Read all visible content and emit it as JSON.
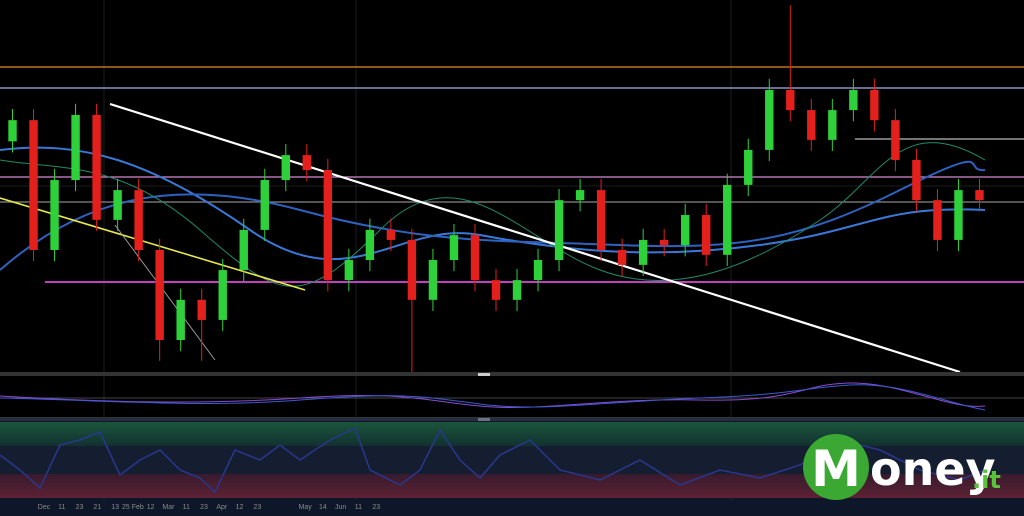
{
  "chart_data": {
    "type": "candlestick",
    "ylim": [
      0,
      100
    ],
    "up_color": "#2fd13a",
    "down_color": "#e3201c",
    "open": [
      62,
      67.7,
      32.8,
      51.6,
      69.1,
      40.9,
      48.9,
      32.8,
      8.6,
      19.4,
      14.0,
      27.4,
      38.2,
      51.6,
      58.3,
      54.3,
      24.7,
      30.1,
      38.2,
      35.5,
      19.4,
      30.1,
      36.8,
      24.7,
      19.4,
      24.7,
      30.1,
      46.2,
      48.9,
      32.8,
      28.8,
      35.5,
      34.1,
      42.2,
      31.5,
      50.3,
      59.7,
      75.8,
      70.4,
      62.4,
      70.4,
      75.8,
      67.7,
      57.0,
      46.2,
      35.5,
      48.9
    ],
    "close": [
      67.7,
      32.8,
      51.6,
      69.1,
      40.9,
      48.9,
      32.8,
      8.6,
      19.4,
      14.0,
      27.4,
      38.2,
      51.6,
      58.3,
      54.3,
      24.7,
      30.1,
      38.2,
      35.5,
      19.4,
      30.1,
      36.8,
      24.7,
      19.4,
      24.7,
      30.1,
      46.2,
      48.9,
      32.8,
      28.8,
      35.5,
      34.1,
      42.2,
      31.5,
      50.3,
      59.7,
      75.8,
      70.4,
      62.4,
      70.4,
      75.8,
      67.7,
      57.0,
      46.2,
      35.5,
      48.9,
      46.2
    ],
    "high": [
      70.7,
      70.7,
      54.6,
      72.1,
      72.1,
      51.9,
      51.9,
      35.8,
      22.4,
      22.4,
      30.4,
      41.2,
      54.6,
      61.3,
      61.3,
      57.3,
      33.1,
      41.2,
      41.2,
      38.5,
      33.1,
      39.8,
      39.8,
      27.7,
      27.7,
      33.1,
      49.2,
      51.9,
      51.9,
      35.8,
      38.5,
      38.5,
      45.2,
      45.2,
      53.3,
      62.7,
      78.8,
      98.6,
      73.4,
      73.4,
      78.8,
      78.8,
      70.7,
      60.0,
      49.2,
      51.9,
      51.9
    ],
    "low": [
      59.0,
      29.8,
      29.8,
      48.6,
      37.9,
      37.9,
      29.8,
      3.0,
      5.6,
      3.0,
      11.0,
      24.4,
      35.2,
      48.6,
      51.3,
      21.7,
      21.7,
      27.1,
      32.5,
      0,
      16.4,
      27.1,
      21.7,
      16.4,
      16.4,
      21.7,
      27.1,
      43.2,
      29.8,
      25.8,
      25.8,
      31.1,
      31.1,
      28.5,
      28.5,
      47.3,
      56.7,
      67.4,
      59.4,
      59.4,
      67.4,
      64.7,
      54.0,
      43.2,
      32.5,
      32.5,
      43.2
    ],
    "date_labels": [
      "Dec",
      "11",
      "23",
      "21",
      "13",
      "25 Feb",
      "12",
      "Mar",
      "11",
      "23",
      "Apr",
      "12",
      "23",
      "May",
      "14",
      "Jun",
      "11",
      "23"
    ]
  },
  "logo": {
    "initial": "M",
    "text": "oney",
    "suffix": ".it"
  }
}
